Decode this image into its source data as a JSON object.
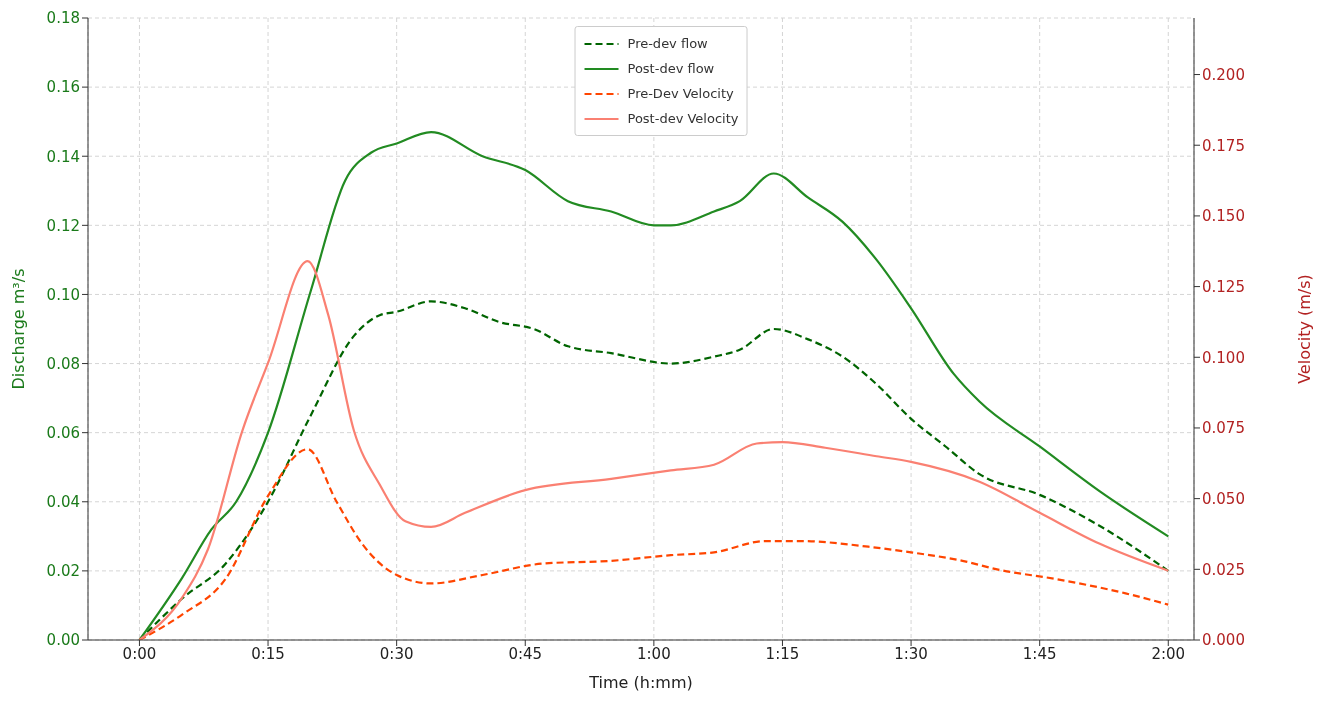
{
  "chart_data": {
    "type": "line",
    "xlabel": "Time (h:mm)",
    "ylabel": "Discharge m³/s",
    "y2label": "Velocity (m/s)",
    "xlim": [
      -0.1,
      2.05
    ],
    "xticks": [
      {
        "value": 0,
        "label": "0:00"
      },
      {
        "value": 0.25,
        "label": "0:15"
      },
      {
        "value": 0.5,
        "label": "0:30"
      },
      {
        "value": 0.75,
        "label": "0:45"
      },
      {
        "value": 1,
        "label": "1:00"
      },
      {
        "value": 1.25,
        "label": "1:15"
      },
      {
        "value": 1.5,
        "label": "1:30"
      },
      {
        "value": 1.75,
        "label": "1:45"
      },
      {
        "value": 2,
        "label": "2:00"
      }
    ],
    "ylim": [
      0,
      0.18
    ],
    "yticks": [
      {
        "value": 0,
        "label": "0.00"
      },
      {
        "value": 0.02,
        "label": "0.02"
      },
      {
        "value": 0.04,
        "label": "0.04"
      },
      {
        "value": 0.06,
        "label": "0.06"
      },
      {
        "value": 0.08,
        "label": "0.08"
      },
      {
        "value": 0.1,
        "label": "0.10"
      },
      {
        "value": 0.12,
        "label": "0.12"
      },
      {
        "value": 0.14,
        "label": "0.14"
      },
      {
        "value": 0.16,
        "label": "0.16"
      },
      {
        "value": 0.18,
        "label": "0.18"
      }
    ],
    "y2lim": [
      0,
      0.22
    ],
    "y2ticks": [
      {
        "value": 0,
        "label": "0.000"
      },
      {
        "value": 0.025,
        "label": "0.025"
      },
      {
        "value": 0.05,
        "label": "0.050"
      },
      {
        "value": 0.075,
        "label": "0.075"
      },
      {
        "value": 0.1,
        "label": "0.100"
      },
      {
        "value": 0.125,
        "label": "0.125"
      },
      {
        "value": 0.15,
        "label": "0.150"
      },
      {
        "value": 0.175,
        "label": "0.175"
      },
      {
        "value": 0.2,
        "label": "0.200"
      }
    ],
    "grid": true,
    "legend": "top",
    "marker": "none",
    "series": [
      {
        "name": "Pre-dev flow",
        "color": "#006400",
        "line_style": "dashed",
        "x": [
          0,
          0.083,
          0.167,
          0.217,
          0.25,
          0.333,
          0.417,
          0.467,
          0.5,
          0.567,
          0.633,
          0.7,
          0.767,
          0.833,
          0.917,
          1.033,
          1.117,
          1.167,
          1.233,
          1.3,
          1.367,
          1.433,
          1.5,
          1.567,
          1.633,
          1.75,
          1.867,
          2
        ],
        "values": [
          0,
          0.012,
          0.022,
          0.032,
          0.04,
          0.065,
          0.088,
          0.094,
          0.095,
          0.098,
          0.096,
          0.092,
          0.09,
          0.085,
          0.083,
          0.08,
          0.082,
          0.084,
          0.09,
          0.087,
          0.082,
          0.074,
          0.064,
          0.056,
          0.048,
          0.042,
          0.033,
          0.02
        ]
      },
      {
        "name": "Post-dev flow",
        "color": "#228b22",
        "line_style": "solid",
        "x": [
          0,
          0.083,
          0.14,
          0.188,
          0.25,
          0.333,
          0.4,
          0.45,
          0.5,
          0.567,
          0.667,
          0.75,
          0.833,
          0.917,
          1,
          1.033,
          1.117,
          1.167,
          1.233,
          1.3,
          1.367,
          1.433,
          1.5,
          1.583,
          1.633,
          1.75,
          1.867,
          2
        ],
        "values": [
          0,
          0.018,
          0.032,
          0.04,
          0.06,
          0.101,
          0.133,
          0.141,
          0.1437,
          0.147,
          0.14,
          0.136,
          0.127,
          0.124,
          0.12,
          0.12,
          0.124,
          0.127,
          0.135,
          0.128,
          0.121,
          0.11,
          0.096,
          0.077,
          0.069,
          0.056,
          0.043,
          0.03
        ]
      },
      {
        "name": "Pre-Dev Velocity",
        "color": "#ff4500",
        "line_style": "dashed",
        "axis": "y2",
        "x": [
          0,
          0.083,
          0.167,
          0.25,
          0.327,
          0.383,
          0.433,
          0.5,
          0.567,
          0.667,
          0.783,
          0.917,
          1.033,
          1.117,
          1.217,
          1.283,
          1.417,
          1.5,
          1.6,
          1.667,
          1.783,
          1.917,
          2
        ],
        "values": [
          0,
          0.009,
          0.0215,
          0.051,
          0.0675,
          0.049,
          0.034,
          0.023,
          0.02,
          0.023,
          0.027,
          0.028,
          0.03,
          0.031,
          0.035,
          0.035,
          0.033,
          0.031,
          0.028,
          0.025,
          0.0215,
          0.0165,
          0.0125
        ]
      },
      {
        "name": "Post-dev Velocity",
        "color": "#fa8072",
        "line_style": "solid",
        "axis": "y2",
        "x": [
          0,
          0.083,
          0.133,
          0.2,
          0.25,
          0.327,
          0.367,
          0.417,
          0.467,
          0.517,
          0.567,
          0.633,
          0.75,
          0.917,
          1.033,
          1.117,
          1.2,
          1.25,
          1.333,
          1.433,
          1.5,
          1.633,
          1.75,
          1.867,
          2
        ],
        "values": [
          0,
          0.015,
          0.032,
          0.074,
          0.098,
          0.134,
          0.115,
          0.074,
          0.055,
          0.042,
          0.04,
          0.045,
          0.053,
          0.057,
          0.06,
          0.062,
          0.0695,
          0.07,
          0.068,
          0.065,
          0.063,
          0.056,
          0.045,
          0.034,
          0.0245
        ]
      }
    ]
  }
}
